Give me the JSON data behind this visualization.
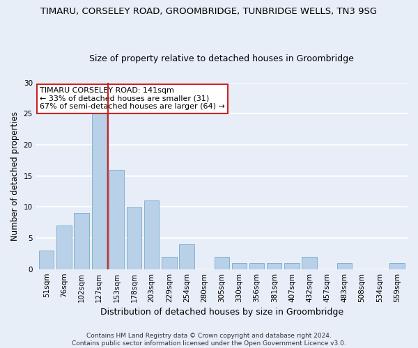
{
  "title1": "TIMARU, CORSELEY ROAD, GROOMBRIDGE, TUNBRIDGE WELLS, TN3 9SG",
  "title2": "Size of property relative to detached houses in Groombridge",
  "xlabel": "Distribution of detached houses by size in Groombridge",
  "ylabel": "Number of detached properties",
  "categories": [
    "51sqm",
    "76sqm",
    "102sqm",
    "127sqm",
    "153sqm",
    "178sqm",
    "203sqm",
    "229sqm",
    "254sqm",
    "280sqm",
    "305sqm",
    "330sqm",
    "356sqm",
    "381sqm",
    "407sqm",
    "432sqm",
    "457sqm",
    "483sqm",
    "508sqm",
    "534sqm",
    "559sqm"
  ],
  "values": [
    3,
    7,
    9,
    25,
    16,
    10,
    11,
    2,
    4,
    0,
    2,
    1,
    1,
    1,
    1,
    2,
    0,
    1,
    0,
    0,
    1
  ],
  "bar_color": "#b8d0e8",
  "bar_edge_color": "#7aaac8",
  "vline_color": "#cc2222",
  "vline_x": 3.5,
  "annotation_text": "TIMARU CORSELEY ROAD: 141sqm\n← 33% of detached houses are smaller (31)\n67% of semi-detached houses are larger (64) →",
  "annotation_box_facecolor": "#ffffff",
  "annotation_box_edgecolor": "#cc2222",
  "ylim": [
    0,
    30
  ],
  "yticks": [
    0,
    5,
    10,
    15,
    20,
    25,
    30
  ],
  "footer1": "Contains HM Land Registry data © Crown copyright and database right 2024.",
  "footer2": "Contains public sector information licensed under the Open Government Licence v3.0.",
  "bg_color": "#e8eef8",
  "grid_color": "#ffffff",
  "title1_fontsize": 9.5,
  "title2_fontsize": 9,
  "ylabel_fontsize": 8.5,
  "xlabel_fontsize": 9,
  "tick_fontsize": 7.5,
  "footer_fontsize": 6.5,
  "annot_fontsize": 8
}
